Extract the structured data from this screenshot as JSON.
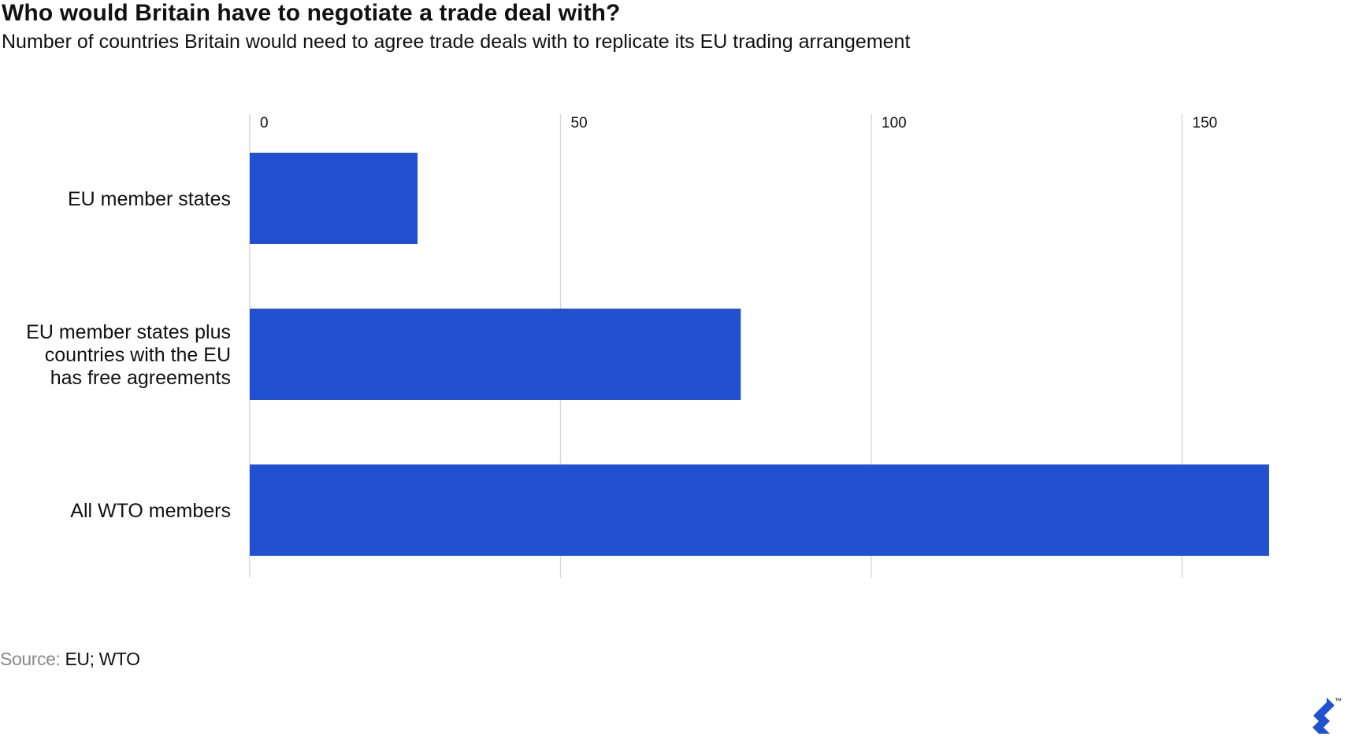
{
  "header": {
    "title": "Who would Britain have to negotiate a trade deal with?",
    "subtitle": "Number of countries Britain would need to agree trade deals with to replicate its EU trading arrangement"
  },
  "footer": {
    "source_label": "Source:",
    "source_value": "EU; WTO",
    "logo_mark": "™"
  },
  "colors": {
    "bar": "#2150d0",
    "grid": "#d9d9d9",
    "text": "#111111",
    "muted": "#8a8a8a"
  },
  "chart_data": {
    "type": "bar",
    "orientation": "horizontal",
    "title": "Who would Britain have to negotiate a trade deal with?",
    "subtitle": "Number of countries Britain would need to agree trade deals with to replicate its EU trading arrangement",
    "categories": [
      [
        "EU member states"
      ],
      [
        "EU member states plus",
        "countries with the EU",
        "has free agreements"
      ],
      [
        "All WTO members"
      ]
    ],
    "values": [
      27,
      79,
      164
    ],
    "xticks": [
      0,
      50,
      100,
      150
    ],
    "xlim": [
      0,
      164
    ],
    "xaxis_position": "top",
    "grid": true,
    "legend": "none"
  }
}
